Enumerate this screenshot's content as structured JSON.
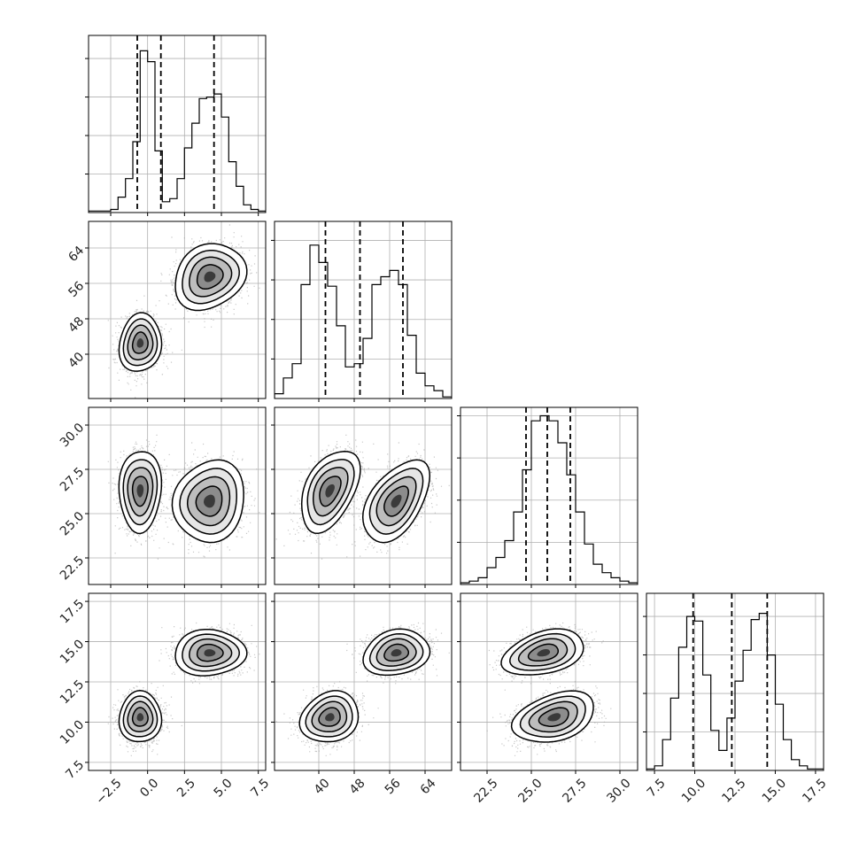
{
  "chart_data": {
    "type": "corner",
    "grid": true,
    "colors": {
      "line": "#000000",
      "density": "#404040",
      "scatter": "#9a9a9a",
      "gridline": "#b0b0b0"
    },
    "parameters": [
      {
        "range": [
          -4,
          8
        ],
        "ticks": [
          -2.5,
          0.0,
          2.5,
          5.0,
          7.5
        ],
        "tick_labels": [
          "−2.5",
          "0.0",
          "2.5",
          "5.0",
          "7.5"
        ]
      },
      {
        "range": [
          30,
          70
        ],
        "ticks": [
          40,
          48,
          56,
          64
        ],
        "tick_labels": [
          "40",
          "48",
          "56",
          "64"
        ]
      },
      {
        "range": [
          21,
          31
        ],
        "ticks": [
          22.5,
          25.0,
          27.5,
          30.0
        ],
        "tick_labels": [
          "22.5",
          "25.0",
          "27.5",
          "30.0"
        ]
      },
      {
        "range": [
          7,
          18
        ],
        "ticks": [
          7.5,
          10.0,
          12.5,
          15.0,
          17.5
        ],
        "tick_labels": [
          "7.5",
          "10.0",
          "12.5",
          "15.0",
          "17.5"
        ]
      }
    ],
    "quantiles": [
      [
        -0.7,
        0.9,
        4.5
      ],
      [
        41.5,
        49.3,
        59.0
      ],
      [
        24.7,
        25.9,
        27.2
      ],
      [
        9.9,
        12.3,
        14.5
      ]
    ],
    "diagonal_ymax": [
      1.15,
      1.12,
      1.05,
      1.15
    ],
    "histograms": [
      {
        "edges": [
          -4,
          -3.5,
          -3,
          -2.5,
          -2,
          -1.5,
          -1,
          -0.5,
          0,
          0.5,
          1,
          1.5,
          2,
          2.5,
          3,
          3.5,
          4,
          4.5,
          5,
          5.5,
          6,
          6.5,
          7,
          7.5,
          8
        ],
        "counts": [
          0.01,
          0.01,
          0.01,
          0.02,
          0.1,
          0.22,
          0.46,
          1.05,
          0.98,
          0.4,
          0.07,
          0.09,
          0.22,
          0.42,
          0.58,
          0.74,
          0.75,
          0.77,
          0.62,
          0.33,
          0.17,
          0.05,
          0.02,
          0.01
        ]
      },
      {
        "edges": [
          30,
          32,
          34,
          36,
          38,
          40,
          42,
          44,
          46,
          48,
          50,
          52,
          54,
          56,
          58,
          60,
          62,
          64,
          66,
          68,
          70
        ],
        "counts": [
          0.03,
          0.13,
          0.22,
          0.72,
          0.97,
          0.86,
          0.71,
          0.46,
          0.2,
          0.22,
          0.38,
          0.72,
          0.77,
          0.81,
          0.72,
          0.4,
          0.16,
          0.08,
          0.05,
          0.01
        ]
      },
      {
        "edges": [
          21,
          21.5,
          22,
          22.5,
          23,
          23.5,
          24,
          24.5,
          25,
          25.5,
          26,
          26.5,
          27,
          27.5,
          28,
          28.5,
          29,
          29.5,
          30,
          30.5,
          31
        ],
        "counts": [
          0.01,
          0.02,
          0.04,
          0.1,
          0.16,
          0.26,
          0.43,
          0.68,
          0.97,
          1.0,
          0.97,
          0.84,
          0.65,
          0.43,
          0.24,
          0.12,
          0.07,
          0.04,
          0.02,
          0.01
        ]
      },
      {
        "edges": [
          7,
          7.5,
          8,
          8.5,
          9,
          9.5,
          10,
          10.5,
          11,
          11.5,
          12,
          12.5,
          13,
          13.5,
          14,
          14.5,
          15,
          15.5,
          16,
          16.5,
          17,
          17.5,
          18
        ],
        "counts": [
          0.01,
          0.03,
          0.2,
          0.47,
          0.8,
          1.0,
          0.97,
          0.62,
          0.26,
          0.13,
          0.34,
          0.58,
          0.78,
          0.98,
          1.02,
          0.75,
          0.43,
          0.2,
          0.07,
          0.03,
          0.01,
          0.01
        ]
      }
    ],
    "clusters": [
      {
        "mean": [
          -0.5,
          42.5,
          26.3,
          10.3
        ],
        "sd": [
          0.65,
          3.0,
          1.05,
          0.72
        ],
        "corr_01": 0.1,
        "corr_12": 0.45,
        "corr_23": 0.35
      },
      {
        "mean": [
          4.2,
          57.5,
          25.7,
          14.3
        ],
        "sd": [
          1.1,
          3.4,
          1.05,
          0.65
        ],
        "corr_01": 0.2,
        "corr_12": 0.5,
        "corr_23": 0.35
      }
    ]
  }
}
